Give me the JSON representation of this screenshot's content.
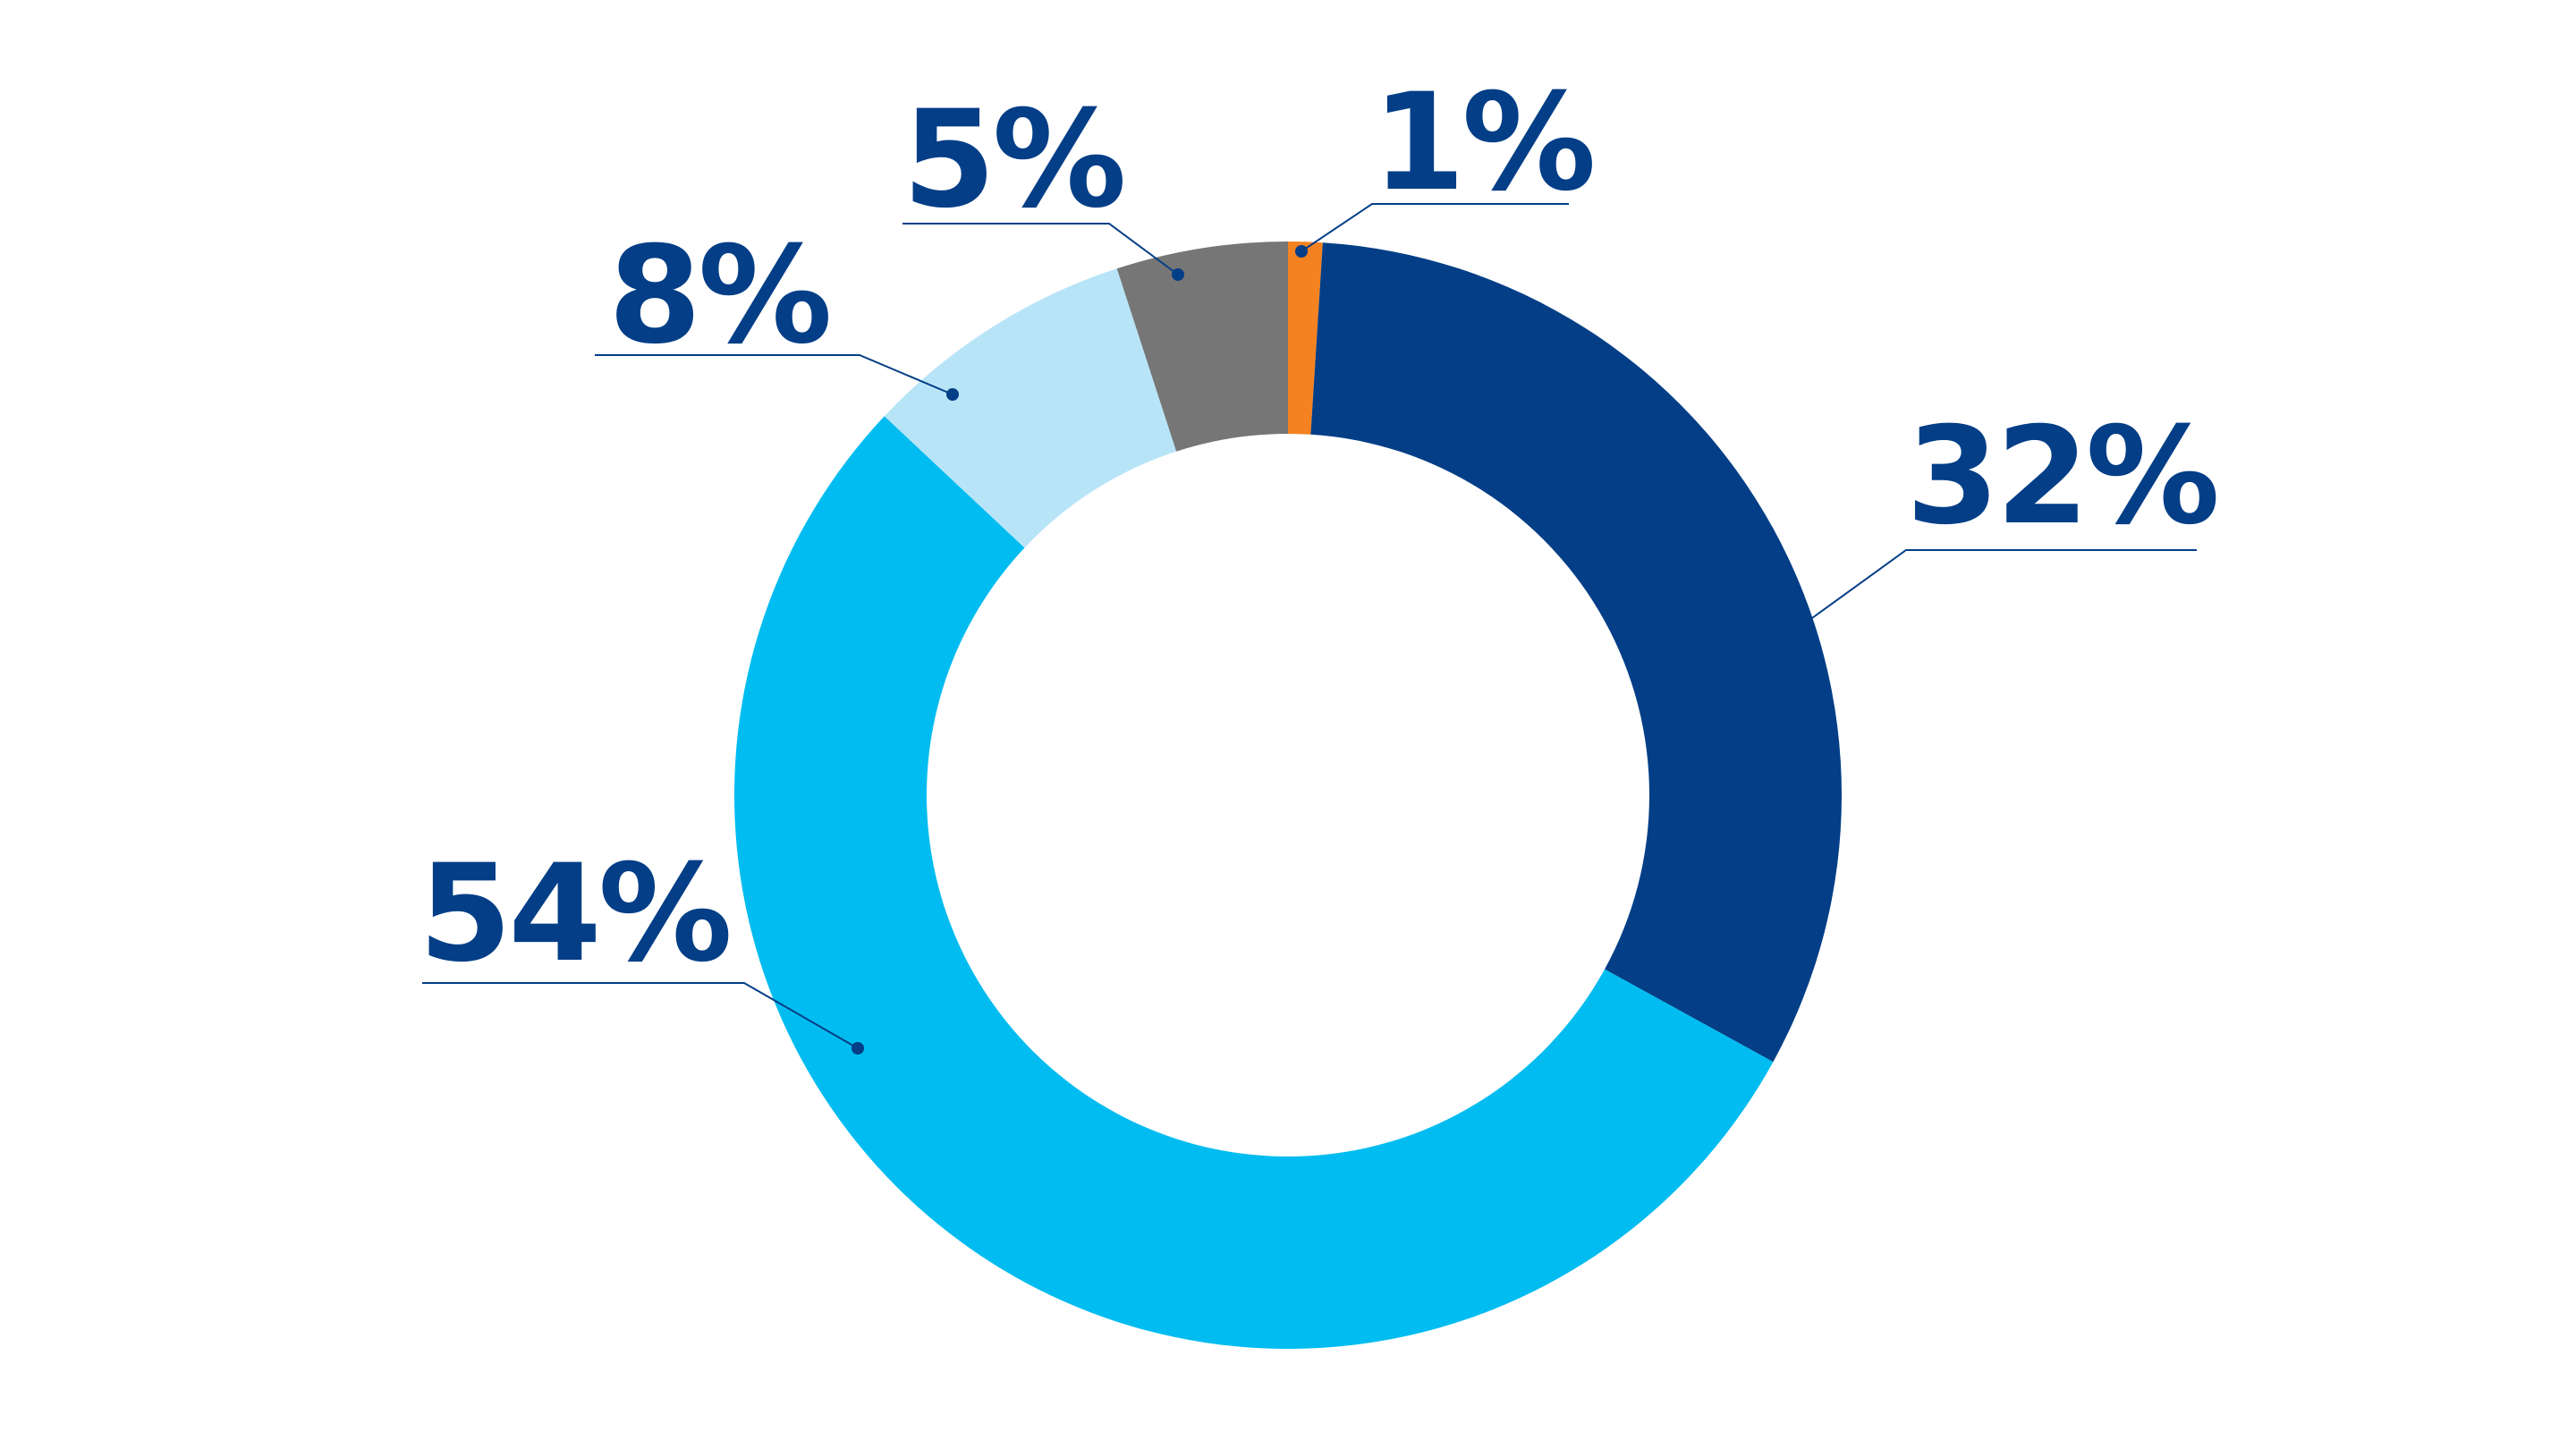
{
  "chart_data": {
    "type": "donut",
    "values": [
      1,
      32,
      54,
      8,
      5
    ],
    "value_labels": [
      "1%",
      "32%",
      "54%",
      "8%",
      "5%"
    ],
    "colors": [
      "#f58220",
      "#033e87",
      "#00bcf0",
      "#b8e4f8",
      "#767676"
    ]
  }
}
